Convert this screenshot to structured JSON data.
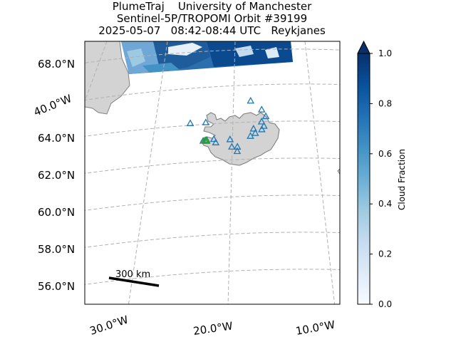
{
  "title": {
    "line1": "PlumeTraj    University of Manchester",
    "line2": "Sentinel-5P/TROPOMI Orbit #39199",
    "line3": "2025-05-07   08:42-08:44 UTC   Reykjanes"
  },
  "map": {
    "lat_labels": [
      "68.0°N",
      "66.0°N",
      "64.0°N",
      "62.0°N",
      "60.0°N",
      "58.0°N",
      "56.0°N"
    ],
    "lon_labels": [
      "40.0°W",
      "30.0°W",
      "20.0°W",
      "10.0°W"
    ],
    "gridlines": true,
    "land_color": "#d3d3d3",
    "coast_color": "#808080",
    "scale_bar": {
      "label": "300 km"
    },
    "volcano_marker_color": "#1f77b4",
    "source_marker_color": "#2ca02c",
    "volcano_markers": [
      {
        "lat": 63.93,
        "lon": -22.1,
        "name": "Reykjanes"
      },
      {
        "lat": 63.88,
        "lon": -22.45
      },
      {
        "lat": 63.82,
        "lon": -21.2
      },
      {
        "lat": 64.0,
        "lon": -21.4
      },
      {
        "lat": 64.02,
        "lon": -19.8
      },
      {
        "lat": 63.64,
        "lon": -19.05
      },
      {
        "lat": 63.63,
        "lon": -19.6
      },
      {
        "lat": 63.4,
        "lon": -19.05
      },
      {
        "lat": 64.42,
        "lon": -17.33
      },
      {
        "lat": 64.65,
        "lon": -17.52
      },
      {
        "lat": 64.63,
        "lon": -16.7
      },
      {
        "lat": 64.82,
        "lon": -16.5
      },
      {
        "lat": 65.05,
        "lon": -16.75
      },
      {
        "lat": 65.35,
        "lon": -16.35
      },
      {
        "lat": 65.7,
        "lon": -16.78
      },
      {
        "lat": 66.15,
        "lon": -17.9
      },
      {
        "lat": 64.8,
        "lon": -23.78
      },
      {
        "lat": 64.88,
        "lon": -22.25
      },
      {
        "lat": 64.25,
        "lon": -17.8
      }
    ],
    "source_markers": [
      {
        "lat": 63.9,
        "lon": -22.3
      },
      {
        "lat": 63.88,
        "lon": -22.1
      },
      {
        "lat": 63.92,
        "lon": -22.2
      }
    ]
  },
  "colorbar": {
    "label": "Cloud Fraction",
    "ticks": [
      "0.0",
      "0.2",
      "0.4",
      "0.6",
      "0.8",
      "1.0"
    ],
    "colormap": [
      "#f7fbff",
      "#deebf7",
      "#c6dbef",
      "#9ecae1",
      "#6baed6",
      "#4292c6",
      "#2171b5",
      "#08519c",
      "#08306b"
    ],
    "extend": "max"
  }
}
